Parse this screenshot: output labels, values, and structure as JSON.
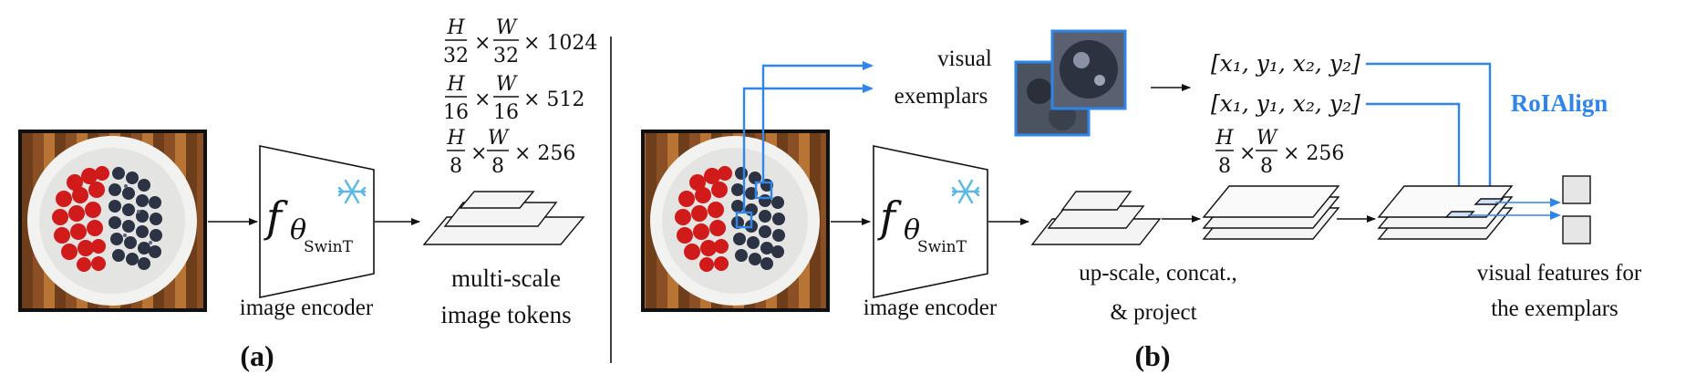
{
  "panel_a": {
    "letter": "(a)",
    "encoder_symbol": "f",
    "encoder_theta": "θ",
    "encoder_sub": "SwinT",
    "encoder_label": "image encoder",
    "tokens_label_line1": "multi-scale",
    "tokens_label_line2": "image tokens",
    "scales": [
      {
        "num1": "H",
        "den1": "32",
        "num2": "W",
        "den2": "32",
        "dim": "× 1024"
      },
      {
        "num1": "H",
        "den1": "16",
        "num2": "W",
        "den2": "16",
        "dim": "× 512"
      },
      {
        "num1": "H",
        "den1": "8",
        "num2": "W",
        "den2": "8",
        "dim": "× 256"
      }
    ]
  },
  "panel_b": {
    "letter": "(b)",
    "exemplars_line1": "visual",
    "exemplars_line2": "exemplars",
    "box_coords_1": "[x₁, y₁, x₂, y₂]",
    "box_coords_2": "[x₁, y₁, x₂, y₂]",
    "roialign": "RoIAlign",
    "encoder_symbol": "f",
    "encoder_theta": "θ",
    "encoder_sub": "SwinT",
    "encoder_label": "image encoder",
    "upscale_line1": "up-scale, concat.,",
    "upscale_line2": "& project",
    "feature_scale": {
      "num1": "H",
      "den1": "8",
      "num2": "W",
      "den2": "8",
      "dim": "× 256"
    },
    "features_line1": "visual features for",
    "features_line2": "the exemplars"
  },
  "icons": {
    "frozen": "snowflake-icon",
    "accent_color": "#2f86e8"
  }
}
